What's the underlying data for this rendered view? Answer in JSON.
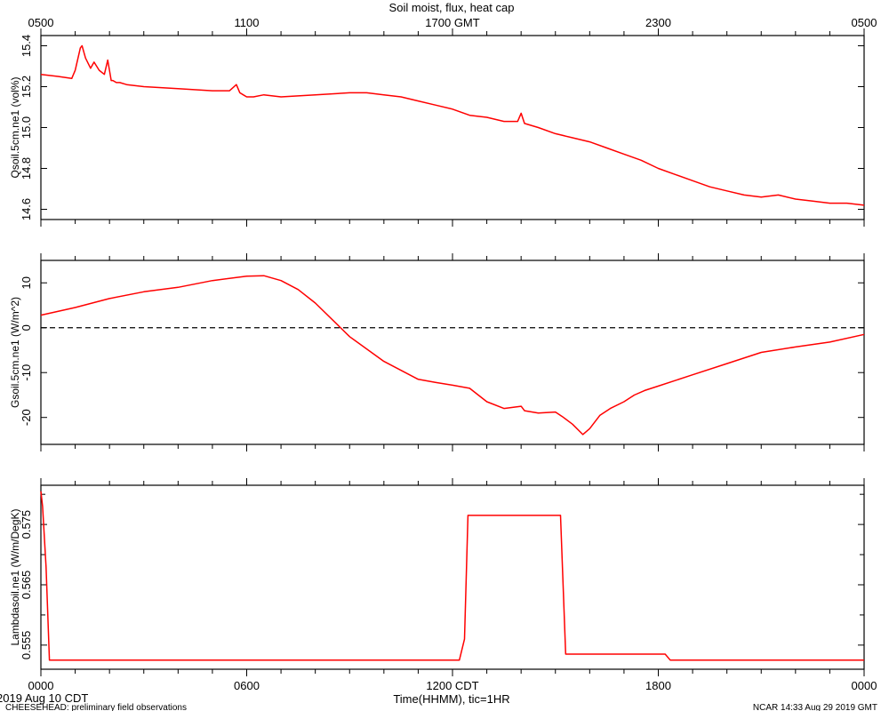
{
  "title": "Soil moist, flux, heat cap",
  "top_axis": {
    "label": "1700 GMT",
    "ticks": [
      "0500",
      "1100",
      "1700 GMT",
      "2300",
      "0500"
    ]
  },
  "bottom_axis": {
    "label": "Time(HHMM), tic=1HR",
    "ticks": [
      "0000",
      "0600",
      "1200 CDT",
      "1800",
      "0000"
    ]
  },
  "date_label": "2019 Aug 10 CDT",
  "footer_left": "CHEESEHEAD: preliminary field observations",
  "footer_right": "NCAR 14:33 Aug 29 2019 GMT",
  "colors": {
    "series": "#ff0000",
    "axes": "#000000",
    "zero_line": "#000000"
  },
  "chart_data": [
    {
      "type": "line",
      "ylabel": "Qsoil.5cm.ne1 (vol%)",
      "ylim": [
        14.55,
        15.45
      ],
      "yticks": [
        14.6,
        14.8,
        15.0,
        15.2,
        15.4
      ],
      "ytick_labels": [
        "14.6",
        "14.8",
        "15.0",
        "15.2",
        "15.4"
      ],
      "x_hours_cdt": [
        0,
        0.5,
        0.9,
        1.0,
        1.15,
        1.2,
        1.3,
        1.45,
        1.55,
        1.7,
        1.85,
        1.95,
        2.05,
        2.1,
        2.2,
        2.3,
        2.5,
        3,
        4,
        5,
        5.5,
        5.7,
        5.8,
        5.9,
        6,
        6.2,
        6.5,
        7,
        8,
        9,
        9.5,
        10,
        10.5,
        11,
        11.5,
        12,
        12.5,
        13,
        13.5,
        13.9,
        14,
        14.1,
        14.5,
        15,
        15.5,
        16,
        16.5,
        17,
        17.5,
        18,
        18.5,
        19,
        19.5,
        20,
        20.5,
        21,
        21.5,
        22,
        22.5,
        23,
        23.5,
        24
      ],
      "values": [
        15.26,
        15.25,
        15.24,
        15.28,
        15.39,
        15.4,
        15.34,
        15.29,
        15.32,
        15.28,
        15.26,
        15.33,
        15.23,
        15.23,
        15.22,
        15.22,
        15.21,
        15.2,
        15.19,
        15.18,
        15.18,
        15.21,
        15.17,
        15.16,
        15.15,
        15.15,
        15.16,
        15.15,
        15.16,
        15.17,
        15.17,
        15.16,
        15.15,
        15.13,
        15.11,
        15.09,
        15.06,
        15.05,
        15.03,
        15.03,
        15.07,
        15.02,
        15.0,
        14.97,
        14.95,
        14.93,
        14.9,
        14.87,
        14.84,
        14.8,
        14.77,
        14.74,
        14.71,
        14.69,
        14.67,
        14.66,
        14.67,
        14.65,
        14.64,
        14.63,
        14.63,
        14.62
      ]
    },
    {
      "type": "line",
      "ylabel": "Gsoil.5cm.ne1 (W/m^2)",
      "ylim": [
        -26,
        15
      ],
      "yticks": [
        -20,
        -10,
        0,
        10
      ],
      "ytick_labels": [
        "-20",
        "-10",
        "0",
        "10"
      ],
      "zero_line": true,
      "x_hours_cdt": [
        0,
        1,
        2,
        3,
        4,
        5,
        6,
        6.5,
        7,
        7.5,
        8,
        9,
        10,
        11,
        11.5,
        12,
        12.5,
        13,
        13.5,
        14,
        14.1,
        14.5,
        15,
        15.2,
        15.5,
        15.8,
        16,
        16.3,
        16.6,
        17,
        17.3,
        17.6,
        18,
        19,
        20,
        21,
        22,
        23,
        24
      ],
      "values": [
        2.8,
        4.5,
        6.5,
        8.0,
        9.0,
        10.5,
        11.5,
        11.6,
        10.5,
        8.5,
        5.5,
        -2.0,
        -7.5,
        -11.5,
        -12.2,
        -12.8,
        -13.5,
        -16.5,
        -18.0,
        -17.5,
        -18.5,
        -19.0,
        -18.8,
        -19.8,
        -21.5,
        -23.8,
        -22.5,
        -19.5,
        -18.0,
        -16.5,
        -15.0,
        -14.0,
        -13.0,
        -10.5,
        -8.0,
        -5.5,
        -4.3,
        -3.2,
        -1.5
      ]
    },
    {
      "type": "line",
      "ylabel": "Lambdasoil.ne1 (W/m/DegK)",
      "ylim": [
        0.551,
        0.5815
      ],
      "yticks": [
        0.555,
        0.565,
        0.575
      ],
      "ytick_labels": [
        "0.555",
        "0.565",
        "0.575"
      ],
      "x_hours_cdt": [
        0,
        0.05,
        0.15,
        0.25,
        0.4,
        12.2,
        12.35,
        12.45,
        12.6,
        15.15,
        15.3,
        15.5,
        18.2,
        18.35,
        18.55,
        24
      ],
      "values": [
        0.5805,
        0.578,
        0.568,
        0.5525,
        0.5525,
        0.5525,
        0.556,
        0.5765,
        0.5765,
        0.5765,
        0.5535,
        0.5535,
        0.5535,
        0.5525,
        0.5525,
        0.5525
      ]
    }
  ]
}
